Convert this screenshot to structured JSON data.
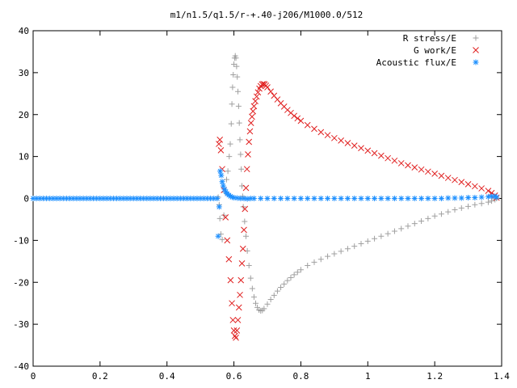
{
  "chart_data": {
    "type": "scatter",
    "title": "m1/n1.5/q1.5/r-+.40-j206/M1000.0/512",
    "xlabel": "",
    "ylabel": "",
    "xlim": [
      0,
      1.4
    ],
    "ylim": [
      -40,
      40
    ],
    "x_ticks": [
      "0",
      "0.2",
      "0.4",
      "0.6",
      "0.8",
      "1",
      "1.2",
      "1.4"
    ],
    "y_ticks": [
      "-40",
      "-30",
      "-20",
      "-10",
      "0",
      "10",
      "20",
      "30",
      "40"
    ],
    "grid": false,
    "legend_position": "top-right",
    "series": [
      {
        "name": "R stress/E",
        "marker": "plus",
        "color": "#a0a0a0",
        "points": [
          [
            0.553,
            0.3
          ],
          [
            0.556,
            -1.5
          ],
          [
            0.558,
            -4.8
          ],
          [
            0.561,
            -8.5
          ],
          [
            0.565,
            -9.8
          ],
          [
            0.57,
            -4.0
          ],
          [
            0.574,
            1.5
          ],
          [
            0.578,
            4.5
          ],
          [
            0.582,
            6.5
          ],
          [
            0.586,
            10.0
          ],
          [
            0.589,
            13.0
          ],
          [
            0.592,
            17.8
          ],
          [
            0.594,
            22.5
          ],
          [
            0.596,
            26.5
          ],
          [
            0.598,
            29.5
          ],
          [
            0.6,
            32.0
          ],
          [
            0.602,
            33.5
          ],
          [
            0.604,
            34.0
          ],
          [
            0.606,
            33.5
          ],
          [
            0.608,
            31.5
          ],
          [
            0.61,
            29.0
          ],
          [
            0.612,
            25.5
          ],
          [
            0.614,
            22.0
          ],
          [
            0.616,
            18.0
          ],
          [
            0.618,
            14.0
          ],
          [
            0.62,
            10.5
          ],
          [
            0.622,
            7.0
          ],
          [
            0.624,
            3.0
          ],
          [
            0.626,
            0.5
          ],
          [
            0.628,
            -2.0
          ],
          [
            0.632,
            -5.5
          ],
          [
            0.636,
            -9.0
          ],
          [
            0.64,
            -12.5
          ],
          [
            0.645,
            -16.0
          ],
          [
            0.65,
            -19.0
          ],
          [
            0.655,
            -21.5
          ],
          [
            0.66,
            -23.5
          ],
          [
            0.665,
            -25.0
          ],
          [
            0.67,
            -26.0
          ],
          [
            0.675,
            -26.6
          ],
          [
            0.68,
            -26.8
          ],
          [
            0.685,
            -26.7
          ],
          [
            0.69,
            -26.3
          ],
          [
            0.7,
            -25.2
          ],
          [
            0.71,
            -24.1
          ],
          [
            0.72,
            -23.1
          ],
          [
            0.73,
            -22.1
          ],
          [
            0.74,
            -21.2
          ],
          [
            0.75,
            -20.4
          ],
          [
            0.76,
            -19.6
          ],
          [
            0.77,
            -18.9
          ],
          [
            0.78,
            -18.2
          ],
          [
            0.79,
            -17.6
          ],
          [
            0.8,
            -17.0
          ],
          [
            0.82,
            -16.0
          ],
          [
            0.84,
            -15.2
          ],
          [
            0.86,
            -14.5
          ],
          [
            0.88,
            -13.8
          ],
          [
            0.9,
            -13.2
          ],
          [
            0.92,
            -12.6
          ],
          [
            0.94,
            -12.0
          ],
          [
            0.96,
            -11.4
          ],
          [
            0.98,
            -10.8
          ],
          [
            1.0,
            -10.2
          ],
          [
            1.02,
            -9.6
          ],
          [
            1.04,
            -9.0
          ],
          [
            1.06,
            -8.4
          ],
          [
            1.08,
            -7.8
          ],
          [
            1.1,
            -7.2
          ],
          [
            1.12,
            -6.6
          ],
          [
            1.14,
            -6.0
          ],
          [
            1.16,
            -5.4
          ],
          [
            1.18,
            -4.8
          ],
          [
            1.2,
            -4.2
          ],
          [
            1.22,
            -3.7
          ],
          [
            1.24,
            -3.2
          ],
          [
            1.26,
            -2.7
          ],
          [
            1.28,
            -2.3
          ],
          [
            1.3,
            -1.9
          ],
          [
            1.32,
            -1.5
          ],
          [
            1.34,
            -1.2
          ],
          [
            1.36,
            -0.9
          ],
          [
            1.37,
            -0.6
          ],
          [
            1.38,
            -0.3
          ],
          [
            1.385,
            0.0
          ]
        ]
      },
      {
        "name": "G work/E",
        "marker": "cross",
        "color": "#e02020",
        "points": [
          [
            0.555,
            13.0
          ],
          [
            0.558,
            14.0
          ],
          [
            0.561,
            11.5
          ],
          [
            0.565,
            7.0
          ],
          [
            0.57,
            2.0
          ],
          [
            0.575,
            -4.5
          ],
          [
            0.58,
            -10.0
          ],
          [
            0.585,
            -14.5
          ],
          [
            0.59,
            -19.5
          ],
          [
            0.594,
            -25.0
          ],
          [
            0.597,
            -29.0
          ],
          [
            0.6,
            -31.5
          ],
          [
            0.603,
            -32.8
          ],
          [
            0.606,
            -33.2
          ],
          [
            0.609,
            -31.5
          ],
          [
            0.612,
            -29.0
          ],
          [
            0.615,
            -26.0
          ],
          [
            0.618,
            -23.0
          ],
          [
            0.621,
            -19.5
          ],
          [
            0.624,
            -15.5
          ],
          [
            0.627,
            -12.0
          ],
          [
            0.63,
            -7.5
          ],
          [
            0.633,
            -2.5
          ],
          [
            0.636,
            2.5
          ],
          [
            0.639,
            7.0
          ],
          [
            0.642,
            10.5
          ],
          [
            0.645,
            13.5
          ],
          [
            0.648,
            16.0
          ],
          [
            0.651,
            18.0
          ],
          [
            0.654,
            19.5
          ],
          [
            0.657,
            20.8
          ],
          [
            0.66,
            22.0
          ],
          [
            0.664,
            23.2
          ],
          [
            0.668,
            24.3
          ],
          [
            0.672,
            25.3
          ],
          [
            0.676,
            26.2
          ],
          [
            0.68,
            26.8
          ],
          [
            0.684,
            27.2
          ],
          [
            0.688,
            27.3
          ],
          [
            0.692,
            27.2
          ],
          [
            0.696,
            26.9
          ],
          [
            0.7,
            26.5
          ],
          [
            0.71,
            25.5
          ],
          [
            0.72,
            24.5
          ],
          [
            0.73,
            23.6
          ],
          [
            0.74,
            22.7
          ],
          [
            0.75,
            21.9
          ],
          [
            0.76,
            21.1
          ],
          [
            0.77,
            20.4
          ],
          [
            0.78,
            19.7
          ],
          [
            0.79,
            19.1
          ],
          [
            0.8,
            18.5
          ],
          [
            0.82,
            17.5
          ],
          [
            0.84,
            16.6
          ],
          [
            0.86,
            15.8
          ],
          [
            0.88,
            15.1
          ],
          [
            0.9,
            14.4
          ],
          [
            0.92,
            13.8
          ],
          [
            0.94,
            13.2
          ],
          [
            0.96,
            12.6
          ],
          [
            0.98,
            12.0
          ],
          [
            1.0,
            11.4
          ],
          [
            1.02,
            10.8
          ],
          [
            1.04,
            10.2
          ],
          [
            1.06,
            9.6
          ],
          [
            1.08,
            9.0
          ],
          [
            1.1,
            8.4
          ],
          [
            1.12,
            7.9
          ],
          [
            1.14,
            7.4
          ],
          [
            1.16,
            6.9
          ],
          [
            1.18,
            6.4
          ],
          [
            1.2,
            5.9
          ],
          [
            1.22,
            5.4
          ],
          [
            1.24,
            4.9
          ],
          [
            1.26,
            4.4
          ],
          [
            1.28,
            3.9
          ],
          [
            1.3,
            3.4
          ],
          [
            1.32,
            2.9
          ],
          [
            1.34,
            2.4
          ],
          [
            1.36,
            1.8
          ],
          [
            1.37,
            1.3
          ],
          [
            1.38,
            0.7
          ],
          [
            1.385,
            0.2
          ]
        ]
      },
      {
        "name": "Acoustic flux/E",
        "marker": "star",
        "color": "#1e90ff",
        "points": [
          [
            0.0,
            0.0
          ],
          [
            0.01,
            0.0
          ],
          [
            0.02,
            0.0
          ],
          [
            0.03,
            0.0
          ],
          [
            0.04,
            0.0
          ],
          [
            0.05,
            0.0
          ],
          [
            0.06,
            0.0
          ],
          [
            0.07,
            0.0
          ],
          [
            0.08,
            0.0
          ],
          [
            0.09,
            0.0
          ],
          [
            0.1,
            0.0
          ],
          [
            0.11,
            0.0
          ],
          [
            0.12,
            0.0
          ],
          [
            0.13,
            0.0
          ],
          [
            0.14,
            0.0
          ],
          [
            0.15,
            0.0
          ],
          [
            0.16,
            0.0
          ],
          [
            0.17,
            0.0
          ],
          [
            0.18,
            0.0
          ],
          [
            0.19,
            0.0
          ],
          [
            0.2,
            0.0
          ],
          [
            0.21,
            0.0
          ],
          [
            0.22,
            0.0
          ],
          [
            0.23,
            0.0
          ],
          [
            0.24,
            0.0
          ],
          [
            0.25,
            0.0
          ],
          [
            0.26,
            0.0
          ],
          [
            0.27,
            0.0
          ],
          [
            0.28,
            0.0
          ],
          [
            0.29,
            0.0
          ],
          [
            0.3,
            0.0
          ],
          [
            0.31,
            0.0
          ],
          [
            0.32,
            0.0
          ],
          [
            0.33,
            0.0
          ],
          [
            0.34,
            0.0
          ],
          [
            0.35,
            0.0
          ],
          [
            0.36,
            0.0
          ],
          [
            0.37,
            0.0
          ],
          [
            0.38,
            0.0
          ],
          [
            0.39,
            0.0
          ],
          [
            0.4,
            0.0
          ],
          [
            0.41,
            0.0
          ],
          [
            0.42,
            0.0
          ],
          [
            0.43,
            0.0
          ],
          [
            0.44,
            0.0
          ],
          [
            0.45,
            0.0
          ],
          [
            0.46,
            0.0
          ],
          [
            0.47,
            0.0
          ],
          [
            0.48,
            0.0
          ],
          [
            0.49,
            0.0
          ],
          [
            0.5,
            0.0
          ],
          [
            0.51,
            0.0
          ],
          [
            0.52,
            0.0
          ],
          [
            0.53,
            0.0
          ],
          [
            0.54,
            0.0
          ],
          [
            0.55,
            0.0
          ],
          [
            0.553,
            -9.0
          ],
          [
            0.556,
            -2.0
          ],
          [
            0.559,
            6.5
          ],
          [
            0.562,
            5.5
          ],
          [
            0.565,
            4.0
          ],
          [
            0.568,
            3.0
          ],
          [
            0.572,
            2.2
          ],
          [
            0.576,
            1.6
          ],
          [
            0.58,
            1.1
          ],
          [
            0.585,
            0.8
          ],
          [
            0.59,
            0.5
          ],
          [
            0.595,
            0.3
          ],
          [
            0.6,
            0.2
          ],
          [
            0.61,
            0.1
          ],
          [
            0.62,
            0.0
          ],
          [
            0.63,
            0.0
          ],
          [
            0.64,
            -0.1
          ],
          [
            0.65,
            0.0
          ],
          [
            0.66,
            0.0
          ],
          [
            0.68,
            0.0
          ],
          [
            0.7,
            0.0
          ],
          [
            0.72,
            0.0
          ],
          [
            0.74,
            0.0
          ],
          [
            0.76,
            0.0
          ],
          [
            0.78,
            0.0
          ],
          [
            0.8,
            0.0
          ],
          [
            0.82,
            0.0
          ],
          [
            0.84,
            0.0
          ],
          [
            0.86,
            0.0
          ],
          [
            0.88,
            0.0
          ],
          [
            0.9,
            0.0
          ],
          [
            0.92,
            0.0
          ],
          [
            0.94,
            0.0
          ],
          [
            0.96,
            0.0
          ],
          [
            0.98,
            0.0
          ],
          [
            1.0,
            0.0
          ],
          [
            1.02,
            0.0
          ],
          [
            1.04,
            0.0
          ],
          [
            1.06,
            0.0
          ],
          [
            1.08,
            0.0
          ],
          [
            1.1,
            0.0
          ],
          [
            1.12,
            0.0
          ],
          [
            1.14,
            0.0
          ],
          [
            1.16,
            0.0
          ],
          [
            1.18,
            0.0
          ],
          [
            1.2,
            0.0
          ],
          [
            1.22,
            0.0
          ],
          [
            1.24,
            0.1
          ],
          [
            1.26,
            0.1
          ],
          [
            1.28,
            0.1
          ],
          [
            1.3,
            0.2
          ],
          [
            1.32,
            0.2
          ],
          [
            1.34,
            0.3
          ],
          [
            1.36,
            0.4
          ],
          [
            1.37,
            0.5
          ],
          [
            1.38,
            0.5
          ],
          [
            1.385,
            0.3
          ]
        ]
      }
    ]
  }
}
